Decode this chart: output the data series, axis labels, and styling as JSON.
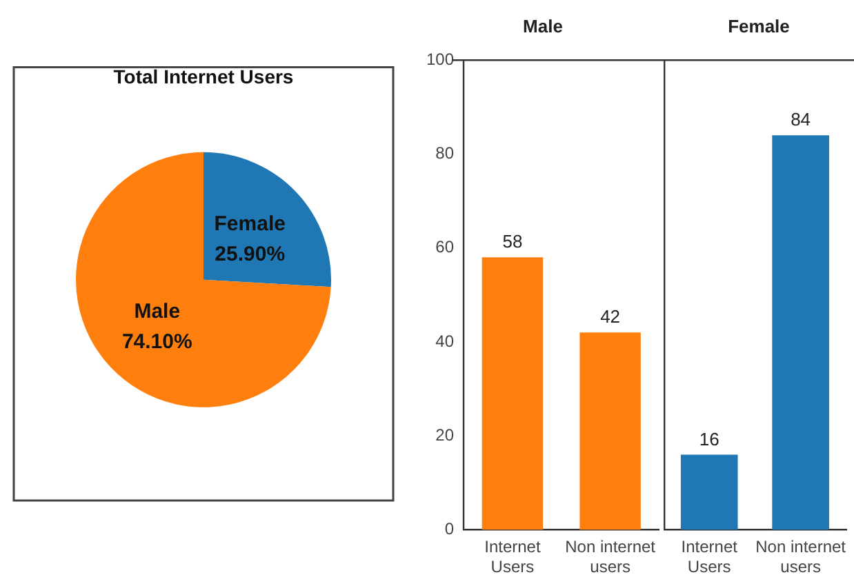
{
  "chart_data": [
    {
      "type": "pie",
      "title": "Total Internet Users",
      "categories": [
        "Female",
        "Male"
      ],
      "values": [
        25.9,
        74.1
      ],
      "colors": [
        "#1f77b4",
        "#ff7f0e"
      ],
      "value_labels": [
        "25.90%",
        "74.10%"
      ],
      "legend": false
    },
    {
      "type": "bar",
      "title": "Male",
      "categories": [
        "Internet Users",
        "Non internet users"
      ],
      "values": [
        58,
        42
      ],
      "colors": [
        "#ff7f0e",
        "#ff7f0e"
      ],
      "ylim": [
        0,
        100
      ],
      "yticks": [
        0,
        20,
        40,
        60,
        80,
        100
      ],
      "data_labels": true,
      "grid": false,
      "legend": false
    },
    {
      "type": "bar",
      "title": "Female",
      "categories": [
        "Internet Users",
        "Non internet users"
      ],
      "values": [
        16,
        84
      ],
      "colors": [
        "#1f77b4",
        "#1f77b4"
      ],
      "ylim": [
        0,
        100
      ],
      "yticks": [
        0,
        20,
        40,
        60,
        80,
        100
      ],
      "data_labels": true,
      "grid": false,
      "legend": false,
      "tick_labels": "x"
    }
  ]
}
